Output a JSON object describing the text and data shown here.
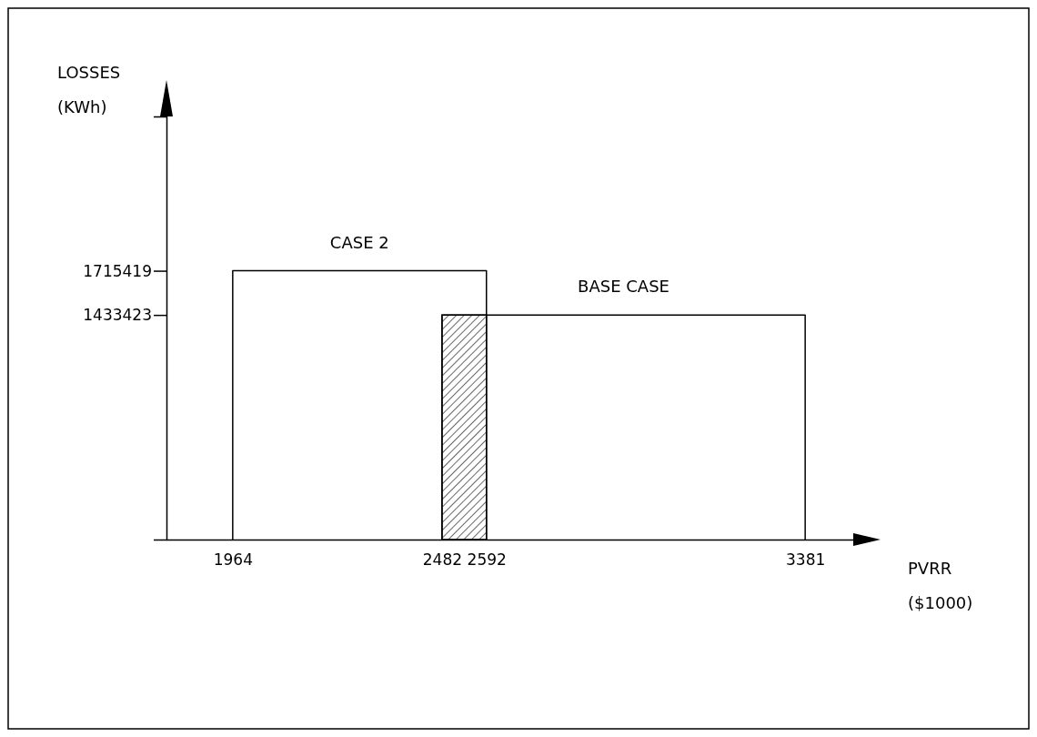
{
  "chart_data": {
    "type": "line",
    "xlabel": "PVRR ($1000)",
    "ylabel": "LOSSES (KWh)",
    "xlim": [
      1800,
      3500
    ],
    "ylim": [
      0,
      2700000
    ],
    "xticks": [
      1964,
      2482,
      2592,
      3381
    ],
    "yticks": [
      1715419,
      1433423
    ],
    "grid": false,
    "marker": "none",
    "line_style": "solid",
    "series": [
      {
        "name": "CASE 2",
        "color": "#000000",
        "x": [
          1964,
          1964,
          2592,
          2592
        ],
        "values": [
          0,
          1715419,
          1715419,
          0
        ]
      },
      {
        "name": "BASE CASE",
        "color": "#000000",
        "x": [
          2482,
          2482,
          3381,
          3381
        ],
        "values": [
          0,
          1433423,
          1433423,
          0
        ]
      },
      {
        "type": "area",
        "color": "#000000",
        "x": [
          2482,
          2592
        ],
        "values": [
          1433423,
          1433423
        ]
      }
    ]
  }
}
